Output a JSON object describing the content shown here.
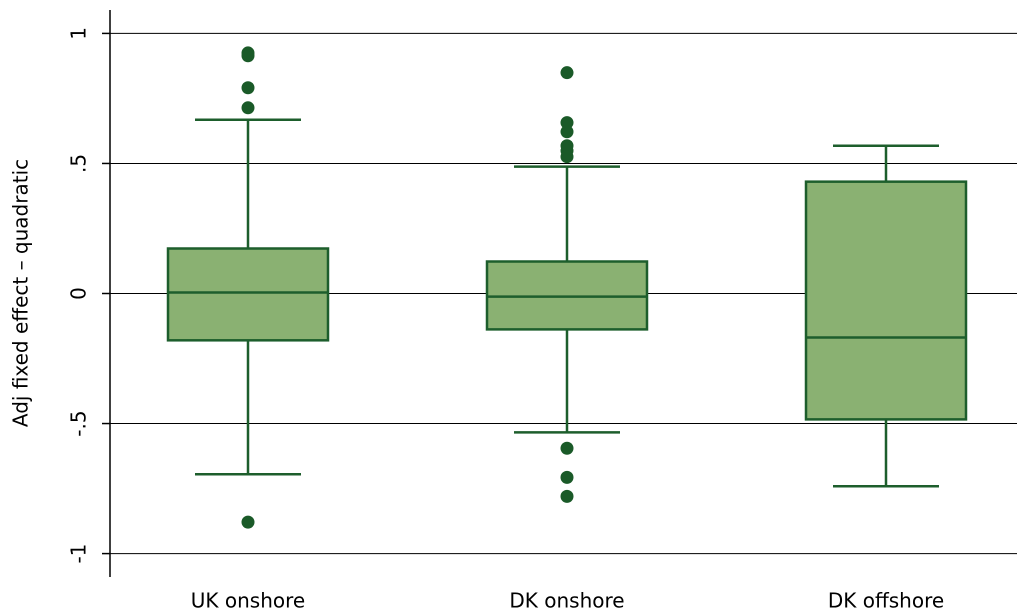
{
  "chart_data": {
    "type": "box",
    "y_label": "Adj fixed effect – quadratic",
    "categories": [
      "UK onshore",
      "DK onshore",
      "DK offshore"
    ],
    "boxes": [
      {
        "whisker_low": -0.695,
        "q1": -0.18,
        "median": 0.004,
        "q3": 0.173,
        "whisker_high": 0.668,
        "outliers": [
          0.925,
          0.914,
          0.791,
          0.714,
          -0.879
        ]
      },
      {
        "whisker_low": -0.534,
        "q1": -0.138,
        "median": -0.012,
        "q3": 0.123,
        "whisker_high": 0.488,
        "outliers": [
          0.849,
          0.657,
          0.622,
          0.568,
          0.549,
          0.526,
          -0.595,
          -0.707,
          -0.78
        ]
      },
      {
        "whisker_low": -0.741,
        "q1": -0.484,
        "median": -0.169,
        "q3": 0.43,
        "whisker_high": 0.568,
        "outliers": []
      }
    ],
    "box_color": "#8ab172",
    "line_color": "#1d5e2c",
    "outlier_color": "#1a5a28",
    "ylim": [
      -1.09,
      1.09
    ],
    "yticks": [
      1,
      {
        "value": 0.5,
        "label": ".5"
      },
      0,
      {
        "value": -0.5,
        "label": "-.5"
      },
      -1
    ],
    "grid": true
  }
}
